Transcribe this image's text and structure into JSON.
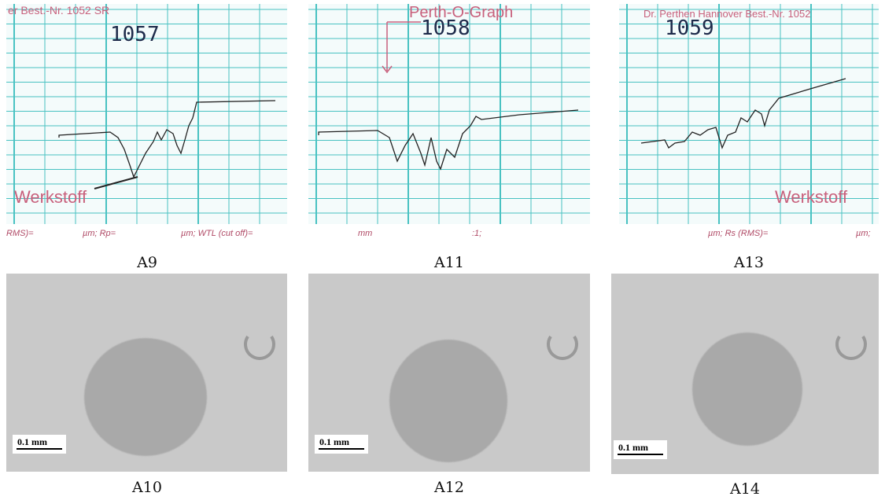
{
  "panels": [
    {
      "caption": "A9",
      "texts": [
        "er Best.-Nr. 1052 SR",
        "1057",
        "Werkstoff",
        "RMS)=",
        "µm; Rp=",
        "µm; WTL (cut off)="
      ]
    },
    {
      "caption": "A11",
      "texts": [
        "Perth-O-Graph",
        "1058",
        "mm",
        ":1;"
      ]
    },
    {
      "caption": "A13",
      "texts": [
        "Dr. Perthen Hannover Best.-Nr. 1052",
        "1059",
        "Werkstoff",
        "µm; Rs (RMS)=",
        "µm;"
      ]
    },
    {
      "caption": "A10",
      "scale_bar": "0.1 mm"
    },
    {
      "caption": "A12",
      "scale_bar": "0.1 mm"
    },
    {
      "caption": "A14",
      "scale_bar": "0.1 mm"
    }
  ]
}
